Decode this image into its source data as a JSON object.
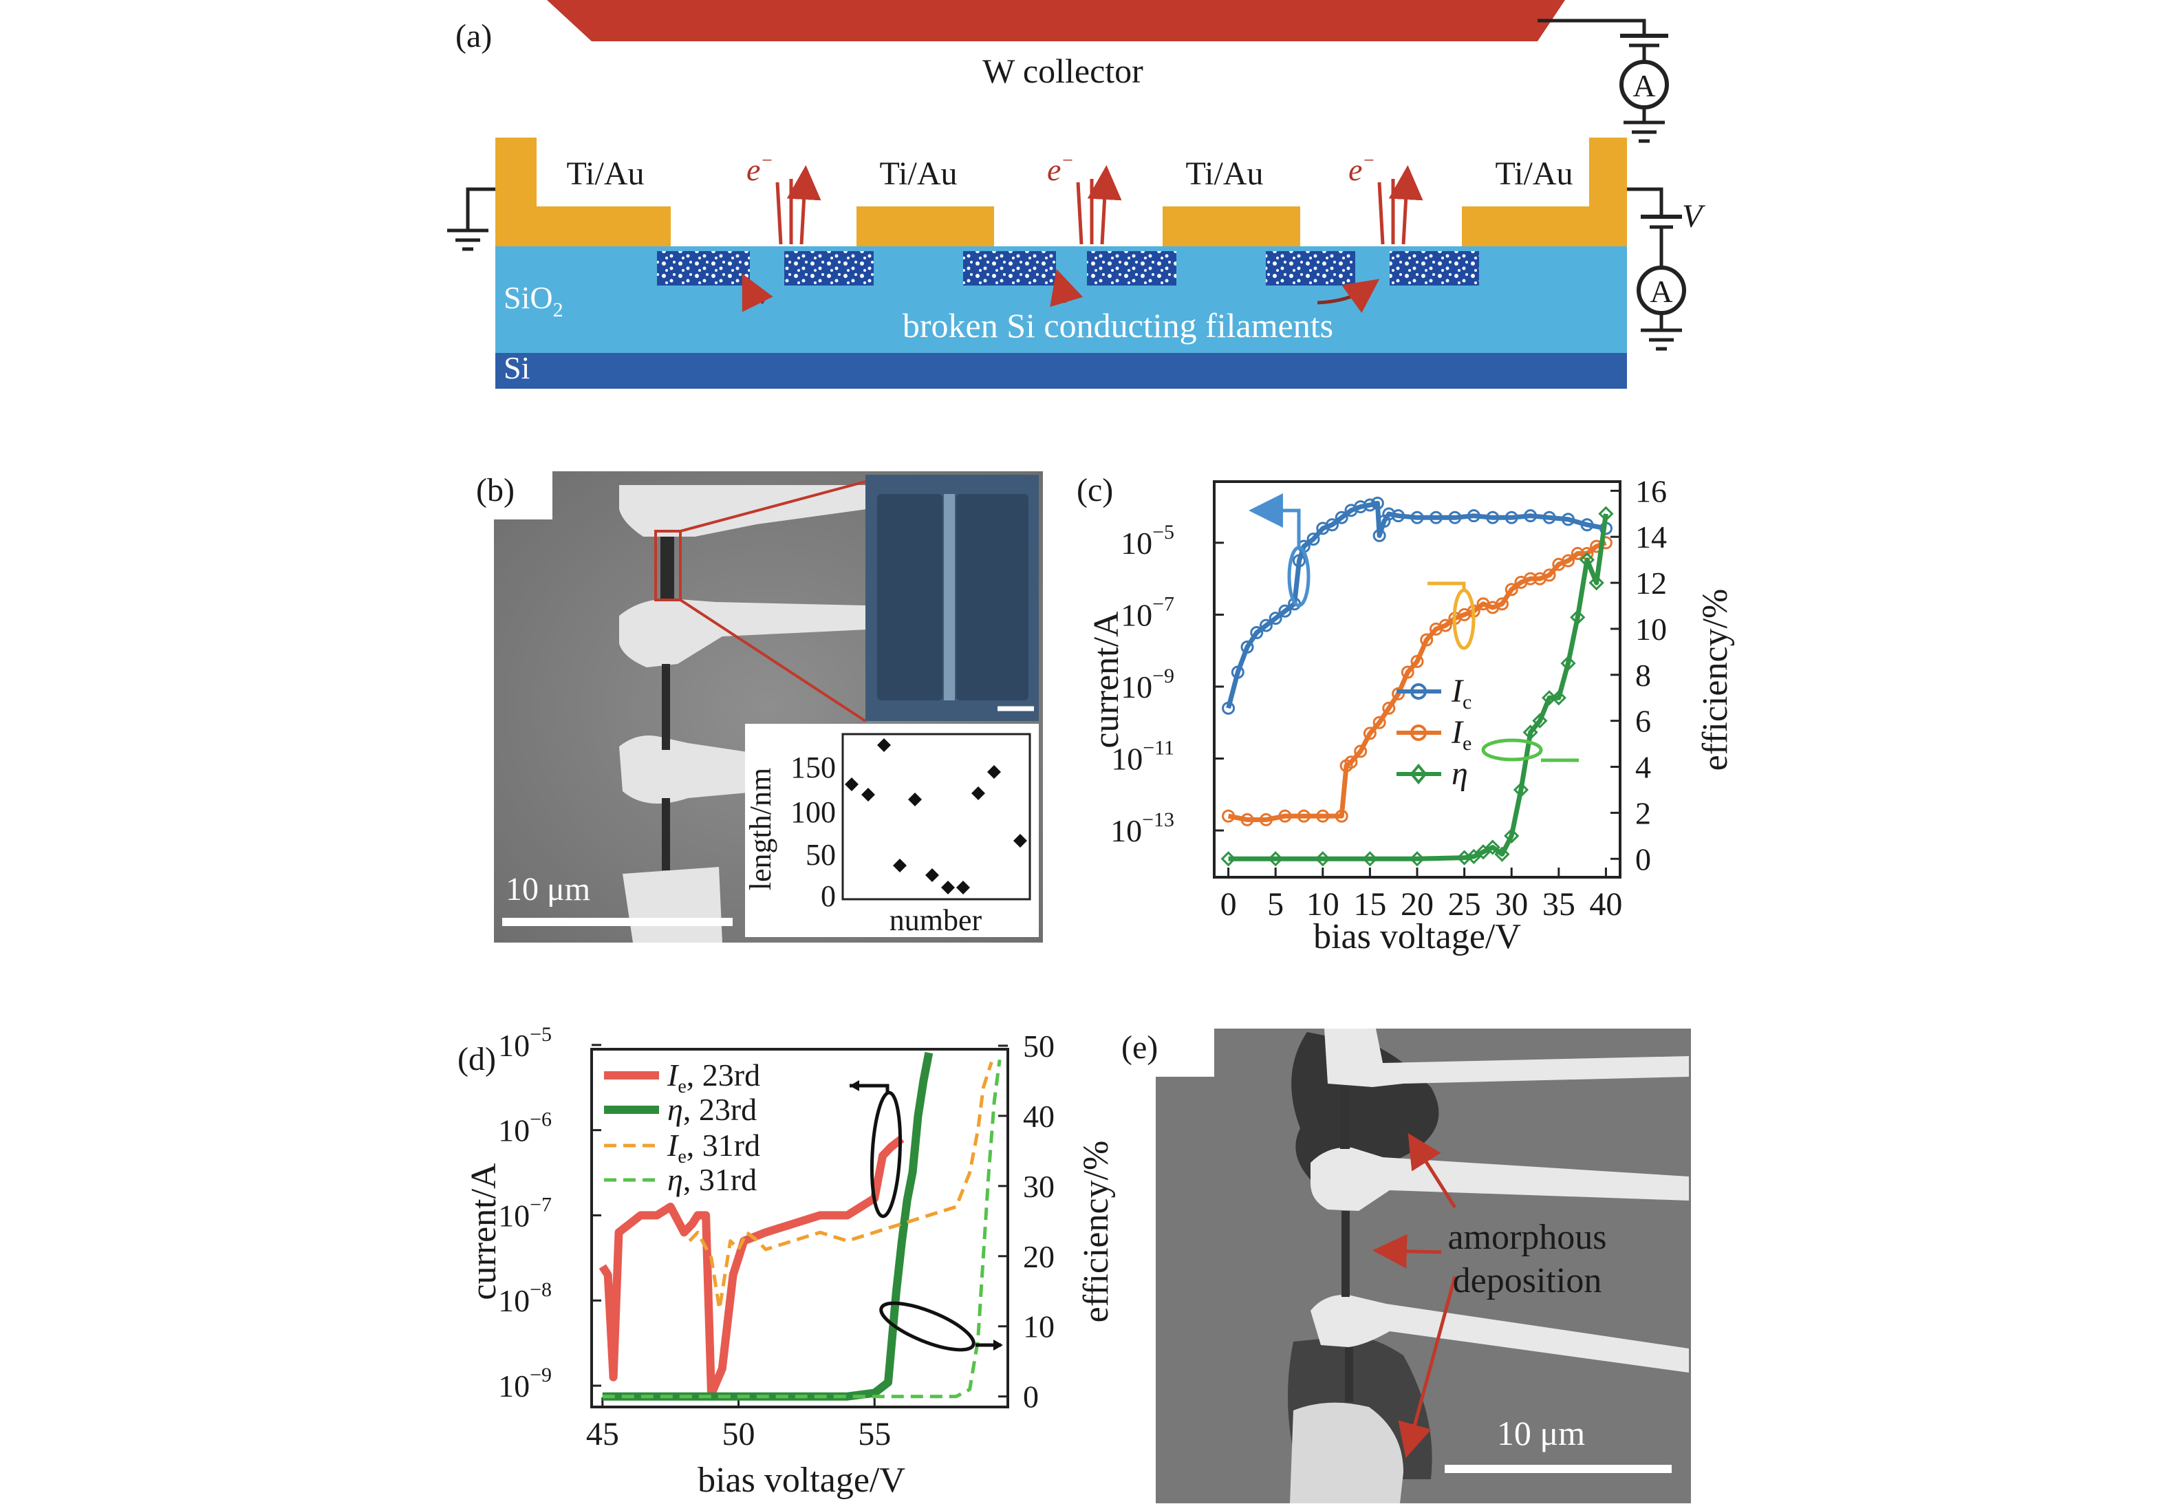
{
  "panel_a": {
    "label": "(a)",
    "collector_label": "W collector",
    "electrode_label": "Ti/Au",
    "electron_label": "e",
    "electron_sup": "−",
    "voltage_label": "V",
    "ammeter_label": "A",
    "oxide_label": "SiO",
    "oxide_sub": "2",
    "filament_label": "broken Si conducting filaments",
    "substrate_label": "Si",
    "colors": {
      "collector": "#c0392b",
      "electrode": "#eaa92b",
      "oxide": "#53b1dd",
      "substrate": "#2f5ea9",
      "filament": "#1f4aa0"
    }
  },
  "panel_b": {
    "label": "(b)",
    "scale_label": "10 μm",
    "inset_xlabel": "number",
    "inset_ylabel": "length/nm",
    "inset_yticks": [
      "0",
      "50",
      "100",
      "150"
    ]
  },
  "panel_e": {
    "label": "(e)",
    "annotation_line1": "amorphous",
    "annotation_line2": "deposition",
    "scale_label": "10 μm"
  },
  "chart_data": [
    {
      "panel": "(c)",
      "type": "line",
      "xlabel": "bias voltage/V",
      "ylabel": "current/A",
      "ylabel_right": "efficiency/%",
      "xticks": [
        "0",
        "5",
        "10",
        "15",
        "20",
        "25",
        "30",
        "35",
        "40"
      ],
      "yticks_left": [
        "10",
        "10",
        "10",
        "10",
        "10"
      ],
      "yticks_left_exp": [
        "−13",
        "−11",
        "−9",
        "−7",
        "−5"
      ],
      "yticks_right": [
        "0",
        "2",
        "4",
        "6",
        "8",
        "10",
        "12",
        "14",
        "16"
      ],
      "xlim": [
        -1.5,
        41.5
      ],
      "ylim_log": [
        -14.3,
        -3.3
      ],
      "ylim_right": [
        -0.8,
        16.4
      ],
      "legend_placement": "center-right",
      "series": [
        {
          "name": "I",
          "sub": "c",
          "color": "#3a78b8",
          "axis": "left",
          "x": [
            0,
            1,
            2,
            3,
            4,
            5,
            6,
            7,
            7.5,
            8,
            9,
            10,
            11,
            12,
            13,
            14,
            15,
            15.8,
            16,
            16.5,
            17,
            18,
            20,
            22,
            24,
            26,
            28,
            30,
            32,
            34,
            36,
            38,
            40
          ],
          "y": [
            -9.6,
            -8.6,
            -7.9,
            -7.5,
            -7.3,
            -7.1,
            -6.9,
            -6.7,
            -5.5,
            -5.1,
            -4.9,
            -4.6,
            -4.5,
            -4.3,
            -4.1,
            -4.0,
            -3.95,
            -3.9,
            -4.8,
            -4.4,
            -4.2,
            -4.25,
            -4.3,
            -4.3,
            -4.3,
            -4.25,
            -4.3,
            -4.3,
            -4.25,
            -4.3,
            -4.35,
            -4.5,
            -4.6
          ]
        },
        {
          "name": "I",
          "sub": "e",
          "color": "#e6742b",
          "axis": "left",
          "x": [
            0,
            2,
            4,
            6,
            8,
            10,
            12,
            12.5,
            13,
            14,
            15,
            16,
            17,
            18,
            19,
            20,
            21,
            22,
            23,
            24,
            25,
            26,
            27,
            28,
            29,
            30,
            31,
            32,
            33,
            34,
            35,
            36,
            37,
            38,
            39,
            40
          ],
          "y": [
            -12.6,
            -12.7,
            -12.7,
            -12.6,
            -12.6,
            -12.6,
            -12.6,
            -11.2,
            -11.1,
            -10.8,
            -10.3,
            -10.0,
            -9.6,
            -9.2,
            -8.6,
            -8.3,
            -7.7,
            -7.4,
            -7.3,
            -7.1,
            -7.0,
            -6.9,
            -6.7,
            -6.8,
            -6.7,
            -6.3,
            -6.1,
            -6.0,
            -6.0,
            -5.9,
            -5.6,
            -5.5,
            -5.3,
            -5.3,
            -5.1,
            -5.0
          ]
        },
        {
          "name": "η",
          "sub": "",
          "color": "#2f9444",
          "axis": "right",
          "x": [
            0,
            5,
            10,
            15,
            20,
            25,
            26,
            27,
            28,
            29,
            30,
            31,
            32,
            33,
            34,
            35,
            36,
            37,
            38,
            39,
            40
          ],
          "y": [
            0,
            0,
            0,
            0,
            0,
            0.05,
            0.1,
            0.3,
            0.5,
            0.2,
            1.0,
            3.0,
            5.5,
            6.0,
            7.0,
            7.0,
            8.5,
            10.5,
            13.0,
            12.0,
            15.0
          ]
        }
      ]
    },
    {
      "panel": "(d)",
      "type": "line",
      "xlabel": "bias voltage/V",
      "ylabel": "current/A",
      "ylabel_right": "efficiency/%",
      "xticks": [
        "45",
        "50",
        "55"
      ],
      "yticks_left": [
        "10",
        "10",
        "10",
        "10",
        "10"
      ],
      "yticks_left_exp": [
        "−9",
        "−8",
        "−7",
        "−6",
        "−5"
      ],
      "yticks_right": [
        "0",
        "10",
        "20",
        "30",
        "40",
        "50"
      ],
      "xlim": [
        44.6,
        59.9
      ],
      "ylim_log": [
        -9.25,
        -5.05
      ],
      "ylim_right": [
        -1.5,
        49.5
      ],
      "legend_placement": "top-left",
      "series": [
        {
          "name": "I",
          "sub": "e",
          "suffix": ", 23rd",
          "color": "#e65a50",
          "width": 12,
          "dash": "",
          "axis": "left",
          "x": [
            45,
            45.2,
            45.4,
            45.6,
            46,
            46.4,
            47,
            47.5,
            48,
            48.3,
            48.5,
            48.8,
            49,
            49.4,
            49.8,
            50.2,
            51,
            52,
            53,
            54,
            54.5,
            55,
            55.3,
            55.6,
            56
          ],
          "y": [
            -7.6,
            -7.7,
            -8.9,
            -7.2,
            -7.1,
            -7.0,
            -7.0,
            -6.9,
            -7.2,
            -7.1,
            -7.0,
            -7.0,
            -9.1,
            -8.8,
            -7.7,
            -7.3,
            -7.2,
            -7.1,
            -7.0,
            -7.0,
            -6.9,
            -6.8,
            -6.3,
            -6.2,
            -6.1
          ]
        },
        {
          "name": "η",
          "sub": "",
          "suffix": ", 23rd",
          "color": "#2e8b3b",
          "width": 12,
          "dash": "",
          "axis": "right",
          "x": [
            45,
            48,
            50,
            52,
            54,
            55,
            55.5,
            55.8,
            56,
            56.2,
            56.4,
            56.6,
            56.8,
            57
          ],
          "y": [
            0,
            0,
            0,
            0,
            0,
            0.5,
            2,
            15,
            22,
            28,
            32,
            40,
            45,
            49
          ]
        },
        {
          "name": "I",
          "sub": "e",
          "suffix": ", 31rd",
          "color": "#f0a030",
          "width": 5,
          "dash": "18,10",
          "axis": "left",
          "x": [
            48.2,
            48.5,
            49,
            49.3,
            49.7,
            50,
            50.3,
            50.7,
            51,
            51.5,
            52,
            53,
            54,
            55,
            56,
            57,
            58,
            58.5,
            58.8,
            59,
            59.3
          ],
          "y": [
            -7.3,
            -7.2,
            -7.5,
            -8.1,
            -7.3,
            -7.4,
            -7.2,
            -7.3,
            -7.4,
            -7.35,
            -7.3,
            -7.2,
            -7.3,
            -7.2,
            -7.1,
            -7.0,
            -6.9,
            -6.5,
            -6.0,
            -5.5,
            -5.2
          ]
        },
        {
          "name": "η",
          "sub": "",
          "suffix": ", 31rd",
          "color": "#55c24a",
          "width": 5,
          "dash": "18,10",
          "axis": "right",
          "x": [
            45,
            50,
            55,
            57,
            58,
            58.5,
            58.8,
            59,
            59.2,
            59.4,
            59.6
          ],
          "y": [
            0,
            0,
            0,
            0,
            0,
            1,
            8,
            20,
            32,
            42,
            48
          ]
        }
      ]
    }
  ]
}
